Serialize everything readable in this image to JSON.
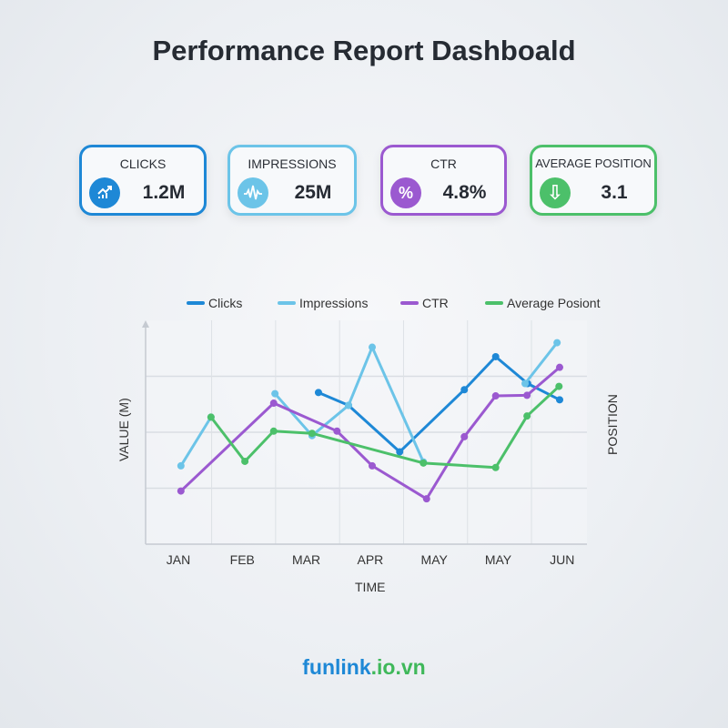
{
  "title": "Performance Report Dashboald",
  "cards": [
    {
      "label": "CLICKS",
      "value": "1.2M",
      "icon": "trending-up-icon",
      "color": "#1e88d6"
    },
    {
      "label": "IMPRESSIONS",
      "value": "25M",
      "icon": "waveform-icon",
      "color": "#6cc4e8"
    },
    {
      "label": "CTR",
      "value": "4.8%",
      "icon": "percent-icon",
      "color": "#9b59d0"
    },
    {
      "label": "AVERAGE POSITION",
      "value": "3.1",
      "icon": "arrow-down-icon",
      "color": "#4cc06a"
    }
  ],
  "card_icons": {
    "percent": "%",
    "arrow": "⇩"
  },
  "chart_data": {
    "type": "line",
    "xlabel": "TIME",
    "ylabel": "VALUE (M)",
    "ylabel_right": "POSITION",
    "categories": [
      "JAN",
      "FEB",
      "MAR",
      "APR",
      "MAY",
      "MAY",
      "JUN"
    ],
    "ylim": [
      0,
      4
    ],
    "grid": true,
    "legend": "top",
    "series": [
      {
        "name": "Clicks",
        "color": "#1e88d6",
        "points": [
          [
            2.19,
            2.71
          ],
          [
            2.66,
            2.48
          ],
          [
            3.46,
            1.65
          ],
          [
            4.47,
            2.76
          ],
          [
            4.96,
            3.35
          ],
          [
            5.46,
            2.87
          ],
          [
            5.96,
            2.58
          ]
        ]
      },
      {
        "name": "Impressions",
        "color": "#6cc4e8",
        "points": [
          [
            0.04,
            1.4
          ],
          [
            0.51,
            2.27
          ],
          null,
          [
            1.51,
            2.69
          ],
          [
            2.09,
            1.94
          ],
          [
            2.66,
            2.48
          ],
          [
            3.03,
            3.52
          ],
          [
            3.83,
            1.47
          ],
          null,
          [
            5.42,
            2.87
          ],
          [
            5.92,
            3.6
          ]
        ]
      },
      {
        "name": "CTR",
        "color": "#9b59d0",
        "points": [
          [
            0.04,
            0.95
          ],
          [
            1.49,
            2.52
          ],
          [
            2.48,
            2.02
          ],
          [
            3.03,
            1.4
          ],
          [
            3.88,
            0.81
          ],
          [
            4.47,
            1.92
          ],
          [
            4.96,
            2.65
          ],
          [
            5.45,
            2.66
          ],
          [
            5.96,
            3.16
          ]
        ]
      },
      {
        "name": "Average Posiont",
        "color": "#4cc06a",
        "points": [
          [
            0.51,
            2.27
          ],
          [
            1.04,
            1.48
          ],
          [
            1.49,
            2.02
          ],
          [
            2.09,
            1.98
          ],
          [
            3.83,
            1.45
          ],
          [
            4.96,
            1.37
          ],
          [
            5.45,
            2.29
          ],
          [
            5.95,
            2.82
          ]
        ]
      }
    ]
  },
  "footer": {
    "part1": "funlink",
    "part2": ".io.vn",
    "color1": "#1e88d6",
    "color2": "#3fb85a"
  }
}
